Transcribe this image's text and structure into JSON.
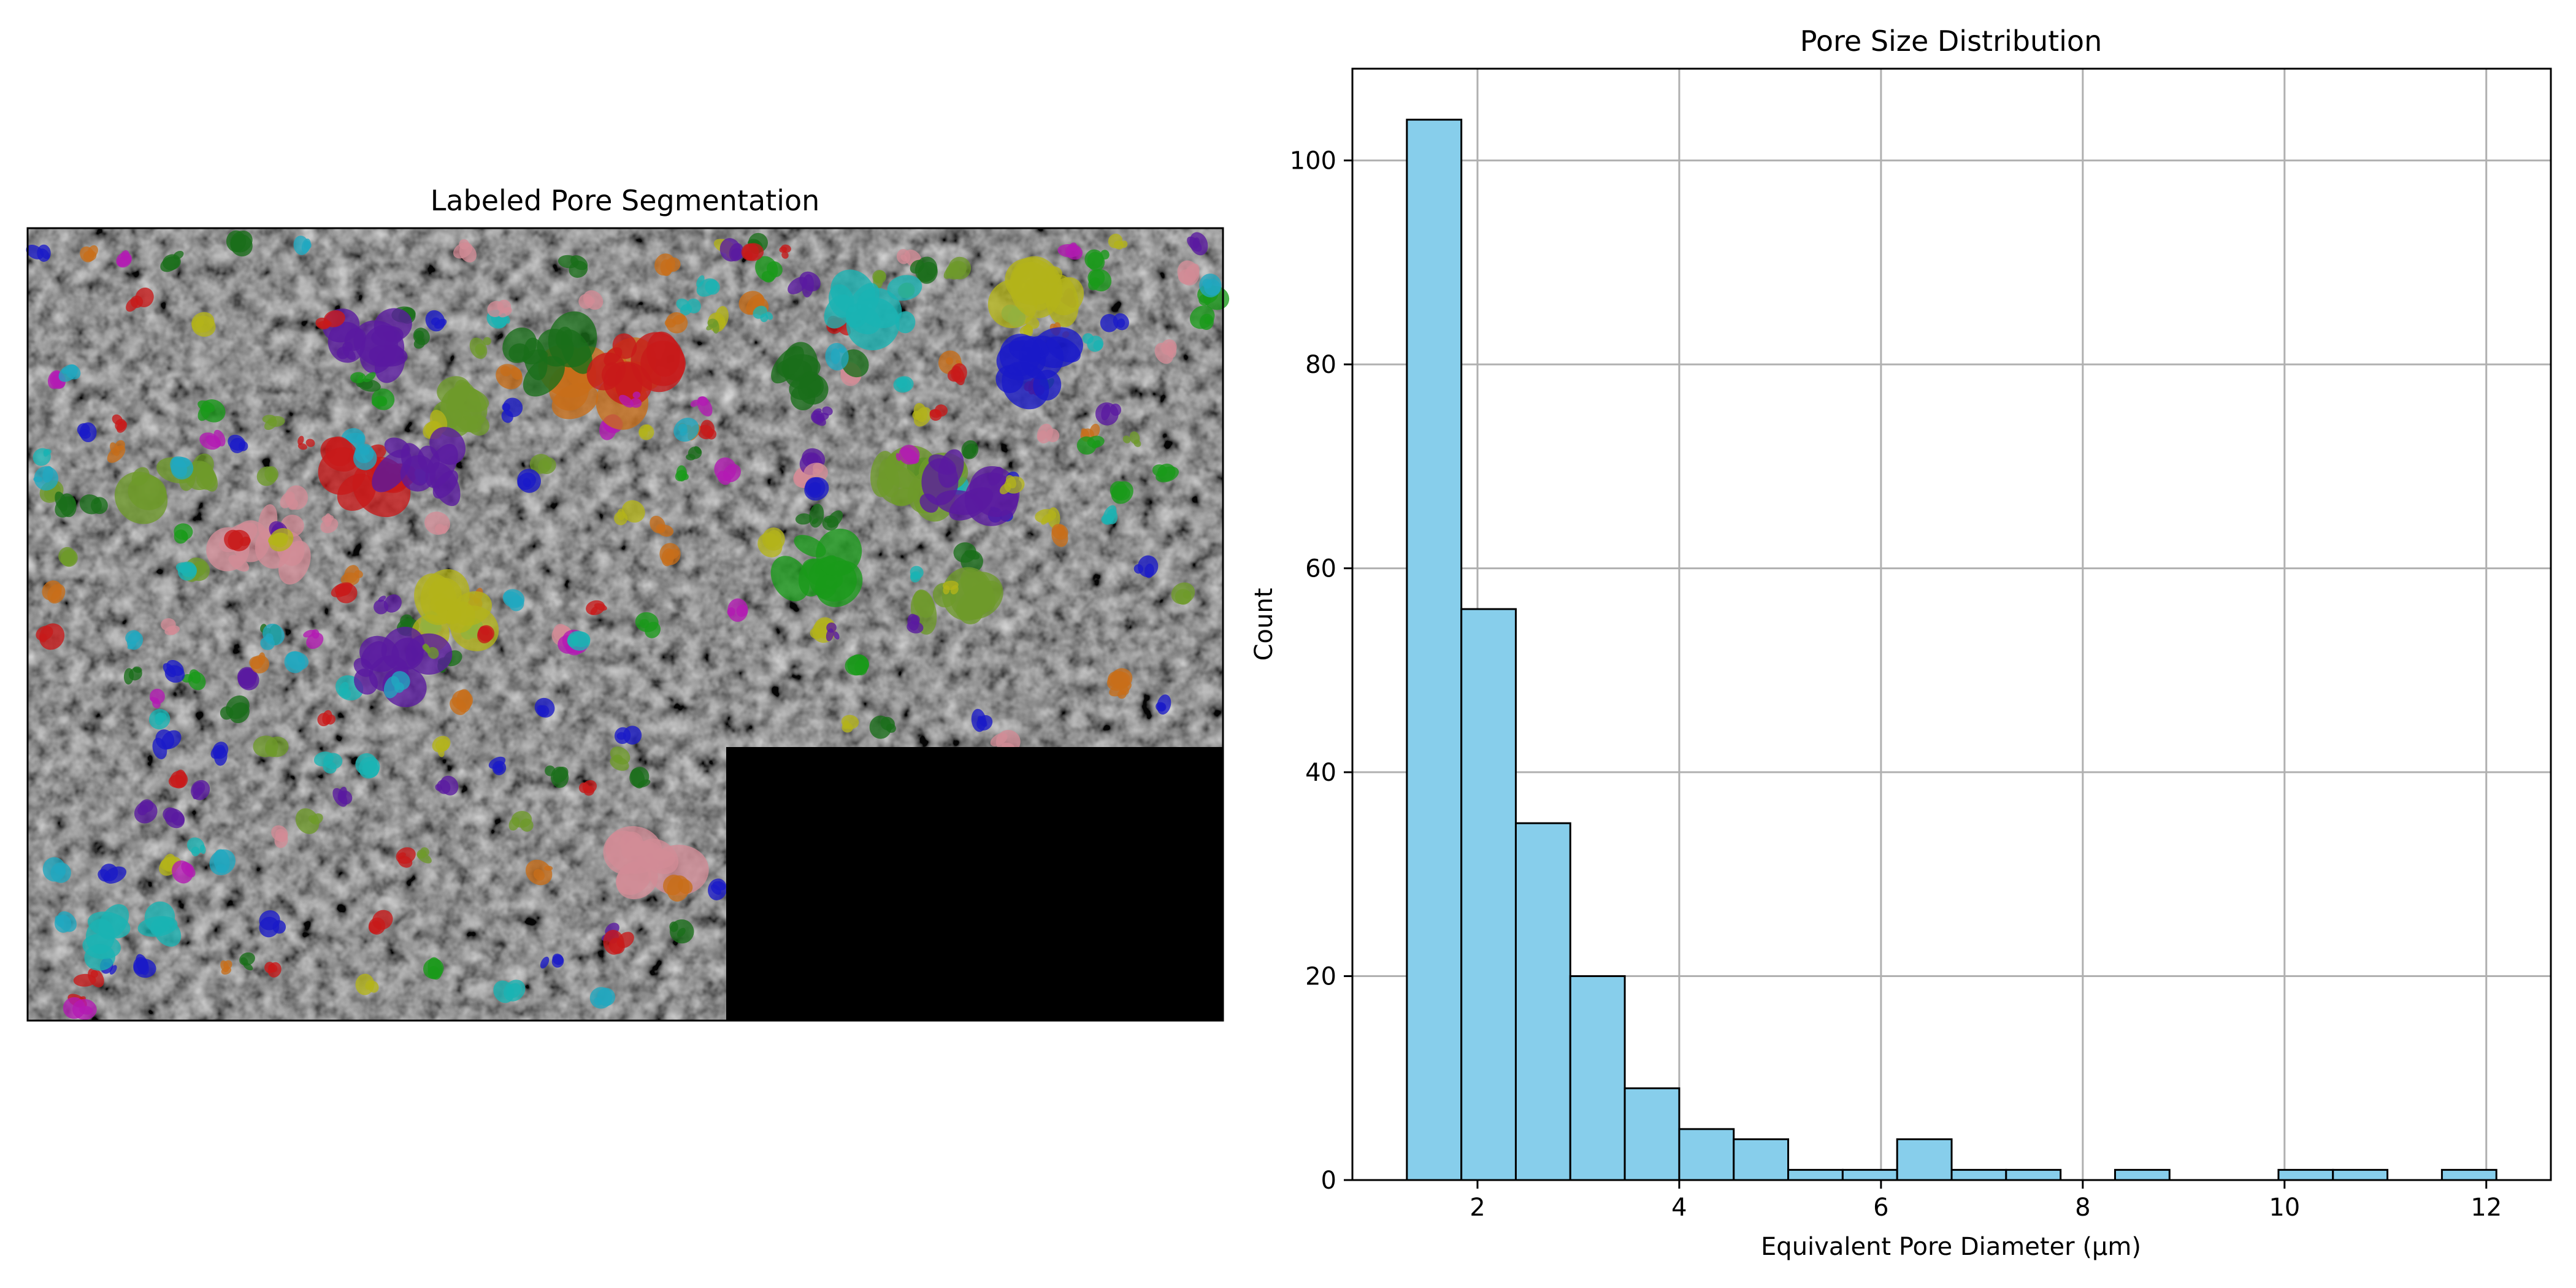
{
  "figure": {
    "image_panel": {
      "title": "Labeled Pore Segmentation",
      "label_colors": [
        "#1a1ac8",
        "#c81a1a",
        "#1a9a1a",
        "#b41ab4",
        "#1ab4b4",
        "#b4b41a",
        "#c86e1a",
        "#d28c96",
        "#6e9a2a",
        "#5a1aa0",
        "#1a6e1a",
        "#20a8c0"
      ]
    },
    "histogram_panel": {
      "title": "Pore Size Distribution",
      "xlabel": "Equivalent Pore Diameter (µm)",
      "ylabel": "Count"
    }
  },
  "chart_data": {
    "type": "bar",
    "title": "Pore Size Distribution",
    "xlabel": "Equivalent Pore Diameter (µm)",
    "ylabel": "Count",
    "bin_edges": [
      1.3,
      1.84,
      2.38,
      2.92,
      3.46,
      4.0,
      4.54,
      5.08,
      5.62,
      6.16,
      6.7,
      7.24,
      7.78,
      8.32,
      8.86,
      9.4,
      9.94,
      10.48,
      11.02,
      11.56,
      12.1
    ],
    "values": [
      104,
      56,
      35,
      20,
      9,
      5,
      4,
      1,
      1,
      4,
      1,
      1,
      0,
      1,
      0,
      0,
      1,
      1,
      0,
      1
    ],
    "xlim": [
      0.76,
      12.64
    ],
    "ylim": [
      0,
      109
    ],
    "xticks": [
      2,
      4,
      6,
      8,
      10,
      12
    ],
    "yticks": [
      0,
      20,
      40,
      60,
      80,
      100
    ],
    "bar_color": "#87ceeb",
    "edge_color": "#000000",
    "grid": true
  }
}
